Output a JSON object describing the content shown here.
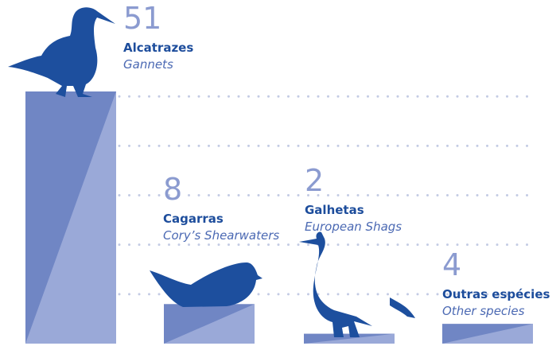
{
  "chart_data": {
    "type": "bar",
    "categories": [
      "Alcatrazes",
      "Cagarras",
      "Galhetas",
      "Outras espécies"
    ],
    "subtitles": [
      "Gannets",
      "Cory’s Shearwaters",
      "European Shags",
      "Other species"
    ],
    "values": [
      51,
      8,
      2,
      4
    ],
    "color": "#7086c4",
    "highlight_color": "#9aa9d8",
    "grid_color": "#c3cbe4",
    "ylim": [
      0,
      51
    ],
    "yticks": [
      10,
      20,
      30,
      40,
      50
    ],
    "grid": true
  }
}
